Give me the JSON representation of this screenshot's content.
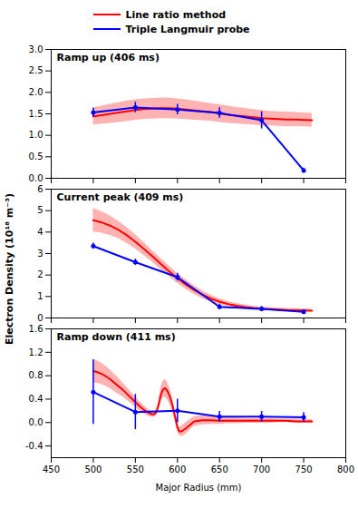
{
  "chart_data": [
    {
      "type": "line",
      "title": "Ramp up (406 ms)",
      "xlim": [
        450,
        800
      ],
      "xticks": [
        450,
        500,
        550,
        600,
        650,
        700,
        750,
        800
      ],
      "ylim": [
        0.0,
        3.0
      ],
      "yticks": [
        {
          "value": 0,
          "label": "0.0"
        },
        0.5,
        {
          "value": 1,
          "label": "1.0"
        },
        1.5,
        {
          "value": 2,
          "label": "2.0"
        },
        2.5,
        {
          "value": 3,
          "label": "3.0"
        }
      ],
      "tick_labels": "y",
      "series": [
        {
          "name": "Line ratio method",
          "color": "#FF0000",
          "x": [
            500,
            510,
            520,
            530,
            540,
            550,
            560,
            570,
            580,
            590,
            600,
            610,
            620,
            630,
            640,
            650,
            660,
            670,
            680,
            690,
            700,
            710,
            720,
            730,
            740,
            750,
            760
          ],
          "values": [
            1.44,
            1.47,
            1.5,
            1.53,
            1.56,
            1.59,
            1.61,
            1.62,
            1.63,
            1.63,
            1.62,
            1.6,
            1.58,
            1.56,
            1.54,
            1.51,
            1.48,
            1.46,
            1.44,
            1.42,
            1.4,
            1.39,
            1.38,
            1.37,
            1.37,
            1.36,
            1.35
          ],
          "upper": [
            1.64,
            1.68,
            1.72,
            1.76,
            1.8,
            1.83,
            1.85,
            1.86,
            1.87,
            1.87,
            1.85,
            1.83,
            1.8,
            1.77,
            1.74,
            1.71,
            1.68,
            1.65,
            1.63,
            1.6,
            1.58,
            1.56,
            1.55,
            1.54,
            1.53,
            1.52,
            1.51
          ],
          "lower": [
            1.24,
            1.26,
            1.28,
            1.3,
            1.32,
            1.35,
            1.37,
            1.38,
            1.39,
            1.39,
            1.38,
            1.37,
            1.35,
            1.34,
            1.33,
            1.3,
            1.28,
            1.27,
            1.25,
            1.24,
            1.22,
            1.22,
            1.21,
            1.2,
            1.2,
            1.2,
            1.19
          ]
        },
        {
          "name": "Triple Langmuir probe",
          "color": "#0000FF",
          "marker": "o",
          "x": [
            500,
            550,
            600,
            650,
            700,
            750
          ],
          "values": [
            1.53,
            1.65,
            1.6,
            1.52,
            1.35,
            0.18
          ],
          "yerr": [
            0.1,
            0.12,
            0.12,
            0.12,
            0.2,
            0.06
          ]
        }
      ]
    },
    {
      "type": "line",
      "title": "Current peak (409 ms)",
      "ylabel": "Electron Density (10¹⁸ m⁻³)",
      "xlim": [
        450,
        800
      ],
      "xticks": [
        450,
        500,
        550,
        600,
        650,
        700,
        750,
        800
      ],
      "ylim": [
        0.0,
        6.0
      ],
      "yticks": [
        0,
        1,
        2,
        3,
        4,
        5,
        6
      ],
      "tick_labels": "y",
      "series": [
        {
          "name": "Line ratio method",
          "color": "#FF0000",
          "x": [
            500,
            510,
            520,
            530,
            540,
            550,
            560,
            570,
            580,
            590,
            600,
            610,
            620,
            630,
            640,
            650,
            660,
            670,
            680,
            690,
            700,
            710,
            720,
            730,
            740,
            750,
            760
          ],
          "values": [
            4.55,
            4.45,
            4.3,
            4.1,
            3.85,
            3.55,
            3.22,
            2.88,
            2.52,
            2.18,
            1.85,
            1.56,
            1.3,
            1.08,
            0.9,
            0.76,
            0.65,
            0.57,
            0.51,
            0.46,
            0.43,
            0.41,
            0.39,
            0.37,
            0.36,
            0.35,
            0.34
          ],
          "upper": [
            5.1,
            4.95,
            4.75,
            4.5,
            4.22,
            3.88,
            3.52,
            3.15,
            2.78,
            2.42,
            2.08,
            1.78,
            1.5,
            1.26,
            1.06,
            0.9,
            0.77,
            0.68,
            0.61,
            0.55,
            0.51,
            0.48,
            0.46,
            0.44,
            0.43,
            0.42,
            0.4
          ],
          "lower": [
            4.0,
            3.95,
            3.85,
            3.7,
            3.48,
            3.22,
            2.92,
            2.61,
            2.26,
            1.94,
            1.62,
            1.34,
            1.1,
            0.9,
            0.74,
            0.62,
            0.53,
            0.46,
            0.41,
            0.37,
            0.35,
            0.34,
            0.32,
            0.3,
            0.29,
            0.28,
            0.28
          ]
        },
        {
          "name": "Triple Langmuir probe",
          "color": "#0000FF",
          "marker": "o",
          "x": [
            500,
            550,
            600,
            650,
            700,
            750
          ],
          "values": [
            3.35,
            2.6,
            1.9,
            0.52,
            0.42,
            0.28
          ],
          "yerr": [
            0.14,
            0.14,
            0.18,
            0.12,
            0.12,
            0.1
          ]
        }
      ]
    },
    {
      "type": "line",
      "title": "Ramp down (411 ms)",
      "xlabel": "Major Radius (mm)",
      "xlim": [
        450,
        800
      ],
      "xticks": [
        450,
        500,
        550,
        600,
        650,
        700,
        750,
        800
      ],
      "ylim": [
        -0.6,
        1.6
      ],
      "yticks": [
        -0.4,
        {
          "value": 0,
          "label": "0.0"
        },
        0.4,
        0.8,
        1.2,
        1.6
      ],
      "series": [
        {
          "name": "Line ratio method",
          "color": "#FF0000",
          "x": [
            500,
            505,
            510,
            515,
            520,
            525,
            530,
            535,
            540,
            545,
            550,
            555,
            560,
            565,
            570,
            572,
            574,
            576,
            578,
            580,
            582,
            584,
            586,
            588,
            590,
            592,
            594,
            596,
            598,
            600,
            602,
            605,
            610,
            620,
            630,
            640,
            650,
            660,
            670,
            680,
            690,
            700,
            710,
            720,
            730,
            740,
            750,
            760
          ],
          "values": [
            0.88,
            0.86,
            0.83,
            0.79,
            0.74,
            0.68,
            0.62,
            0.56,
            0.49,
            0.42,
            0.35,
            0.28,
            0.22,
            0.17,
            0.14,
            0.14,
            0.16,
            0.22,
            0.32,
            0.46,
            0.54,
            0.58,
            0.58,
            0.54,
            0.48,
            0.4,
            0.3,
            0.18,
            0.05,
            -0.08,
            -0.15,
            -0.15,
            -0.1,
            0.02,
            0.04,
            0.04,
            0.03,
            0.03,
            0.03,
            0.03,
            0.03,
            0.03,
            0.03,
            0.03,
            0.03,
            0.02,
            0.02,
            0.02
          ],
          "upper": [
            1.08,
            1.05,
            1.01,
            0.96,
            0.9,
            0.83,
            0.76,
            0.68,
            0.6,
            0.52,
            0.44,
            0.36,
            0.29,
            0.23,
            0.19,
            0.19,
            0.21,
            0.28,
            0.4,
            0.58,
            0.68,
            0.73,
            0.73,
            0.69,
            0.62,
            0.53,
            0.42,
            0.28,
            0.13,
            -0.02,
            -0.08,
            -0.06,
            0.0,
            0.1,
            0.12,
            0.11,
            0.09,
            0.08,
            0.08,
            0.07,
            0.07,
            0.07,
            0.07,
            0.06,
            0.06,
            0.06,
            0.05,
            0.05
          ],
          "lower": [
            0.68,
            0.67,
            0.65,
            0.62,
            0.58,
            0.53,
            0.48,
            0.44,
            0.38,
            0.32,
            0.26,
            0.2,
            0.15,
            0.11,
            0.09,
            0.09,
            0.11,
            0.16,
            0.24,
            0.34,
            0.4,
            0.43,
            0.43,
            0.39,
            0.34,
            0.27,
            0.18,
            0.08,
            -0.03,
            -0.14,
            -0.22,
            -0.24,
            -0.2,
            -0.06,
            -0.04,
            -0.03,
            -0.03,
            -0.02,
            -0.02,
            -0.01,
            -0.01,
            -0.01,
            -0.01,
            0.0,
            0.0,
            -0.01,
            -0.01,
            -0.01
          ]
        },
        {
          "name": "Triple Langmuir probe",
          "color": "#0000FF",
          "marker": "o",
          "x": [
            500,
            550,
            600,
            650,
            700,
            750
          ],
          "values": [
            0.52,
            0.18,
            0.2,
            0.1,
            0.1,
            0.09
          ],
          "yerr": [
            0.55,
            0.3,
            0.2,
            0.09,
            0.09,
            0.08
          ]
        }
      ]
    }
  ]
}
